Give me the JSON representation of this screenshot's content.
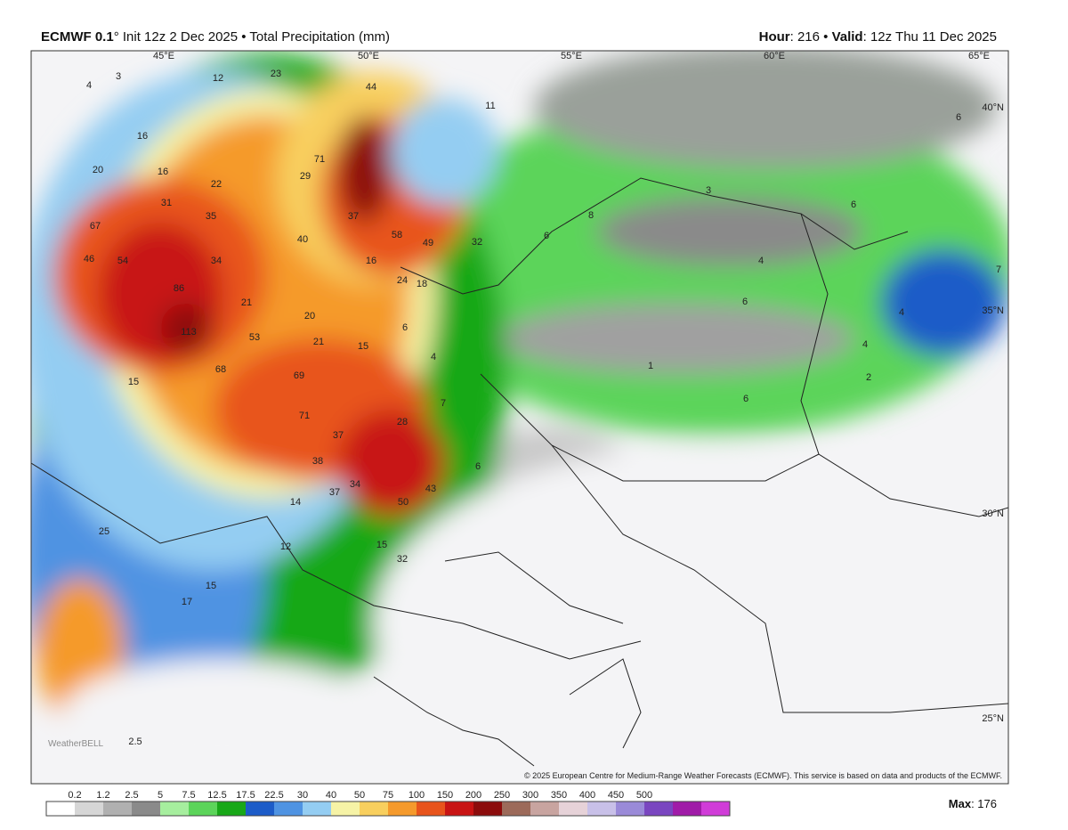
{
  "header": {
    "model": "ECMWF 0.1",
    "init": "° Init 12z 2 Dec 2025 • Total Precipitation (mm)",
    "hour_key": "Hour",
    "hour_val": ": 216 • ",
    "valid_key": "Valid",
    "valid_val": ": 12z Thu 11 Dec 2025"
  },
  "grid_labels": {
    "lon": [
      "45°E",
      "50°E",
      "55°E",
      "60°E",
      "65°E"
    ],
    "lat": [
      "40°N",
      "35°N",
      "30°N",
      "25°N"
    ]
  },
  "map_labels": [
    "4",
    "3",
    "12",
    "23",
    "44",
    "11",
    "16",
    "16",
    "20",
    "22",
    "31",
    "35",
    "71",
    "29",
    "37",
    "67",
    "46",
    "54",
    "34",
    "40",
    "58",
    "49",
    "32",
    "16",
    "24",
    "18",
    "86",
    "21",
    "20",
    "113",
    "53",
    "21",
    "15",
    "6",
    "4",
    "68",
    "69",
    "71",
    "37",
    "28",
    "7",
    "38",
    "34",
    "37",
    "43",
    "50",
    "6",
    "14",
    "12",
    "15",
    "32",
    "15",
    "15",
    "17",
    "25",
    "8",
    "6",
    "3",
    "6",
    "4",
    "6",
    "4",
    "4",
    "2",
    "6",
    "7",
    "1",
    "6",
    "2.5"
  ],
  "copyright": "© 2025 European Centre for Medium-Range Weather Forecasts (ECMWF). This service is based on data and products of the ECMWF.",
  "watermark": "WeatherBELL",
  "legend": {
    "levels": [
      "0.2",
      "1.2",
      "2.5",
      "5",
      "7.5",
      "12.5",
      "17.5",
      "22.5",
      "30",
      "40",
      "50",
      "75",
      "100",
      "150",
      "200",
      "250",
      "300",
      "350",
      "400",
      "450",
      "500"
    ],
    "colors": [
      "#ffffff",
      "#d6d6d6",
      "#b0b0b0",
      "#8a8a8a",
      "#a6ee9e",
      "#5cd45a",
      "#18a818",
      "#1d5cc8",
      "#4f93e2",
      "#94cdf2",
      "#f6f3a6",
      "#f8cf5e",
      "#f59a2c",
      "#e8541c",
      "#c81414",
      "#8c0c0c",
      "#9c6a5a",
      "#c8a4a0",
      "#e6d2d8",
      "#c8c0e8",
      "#9a8ad8",
      "#7a46c0",
      "#a01ca8",
      "#d03cd8"
    ],
    "max_key": "Max",
    "max_val": ": 176"
  }
}
